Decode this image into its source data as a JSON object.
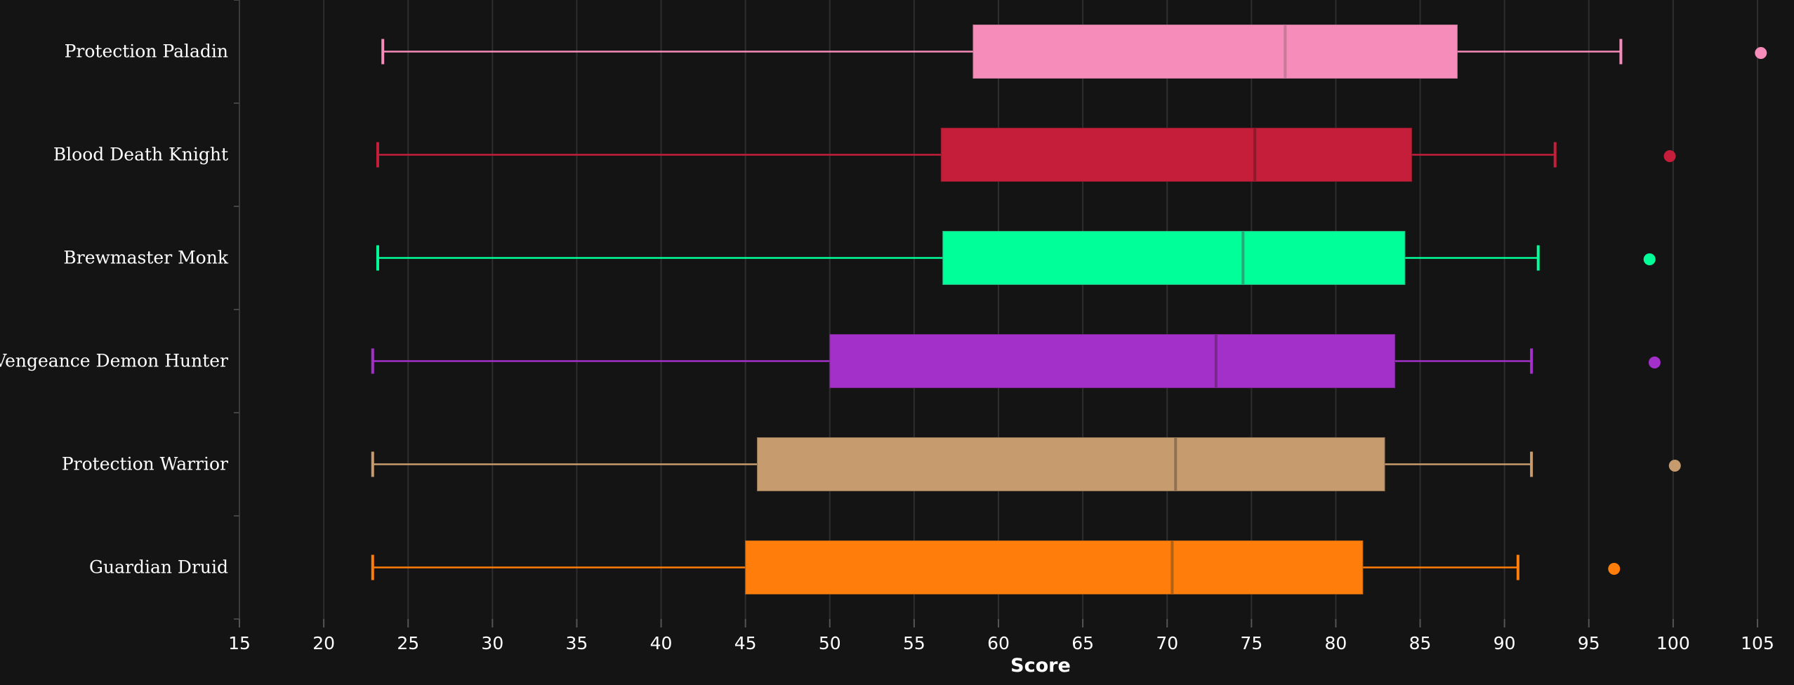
{
  "chart_data": {
    "type": "box",
    "orientation": "horizontal",
    "xlabel": "Score",
    "xlim": [
      15,
      105
    ],
    "xticks": [
      15,
      20,
      25,
      30,
      35,
      40,
      45,
      50,
      55,
      60,
      65,
      70,
      75,
      80,
      85,
      90,
      95,
      100,
      105
    ],
    "grid": true,
    "series": [
      {
        "name": "Protection Paladin",
        "color": "#F58CBA",
        "median_color": "#c97a9a",
        "whisker_low": 23.5,
        "q1": 58.5,
        "median": 77.0,
        "q3": 87.2,
        "whisker_high": 96.9,
        "outliers": [
          105.2
        ]
      },
      {
        "name": "Blood Death Knight",
        "color": "#C41E3A",
        "median_color": "#8f1a2c",
        "whisker_low": 23.2,
        "q1": 56.6,
        "median": 75.2,
        "q3": 84.5,
        "whisker_high": 93.0,
        "outliers": [
          99.8
        ]
      },
      {
        "name": "Brewmaster Monk",
        "color": "#00FF98",
        "median_color": "#2aa877",
        "whisker_low": 23.2,
        "q1": 56.7,
        "median": 74.5,
        "q3": 84.1,
        "whisker_high": 92.0,
        "outliers": [
          98.6
        ]
      },
      {
        "name": "Vengeance Demon Hunter",
        "color": "#A330C9",
        "median_color": "#7a268f",
        "whisker_low": 22.9,
        "q1": 50.0,
        "median": 72.9,
        "q3": 83.5,
        "whisker_high": 91.6,
        "outliers": [
          98.9
        ]
      },
      {
        "name": "Protection Warrior",
        "color": "#C69B6D",
        "median_color": "#8f7154",
        "whisker_low": 22.9,
        "q1": 45.7,
        "median": 70.5,
        "q3": 82.9,
        "whisker_high": 91.6,
        "outliers": [
          100.1
        ]
      },
      {
        "name": "Guardian Druid",
        "color": "#FF7D0A",
        "median_color": "#b26212",
        "whisker_low": 22.9,
        "q1": 45.0,
        "median": 70.3,
        "q3": 81.6,
        "whisker_high": 90.8,
        "outliers": [
          96.5
        ]
      }
    ]
  }
}
